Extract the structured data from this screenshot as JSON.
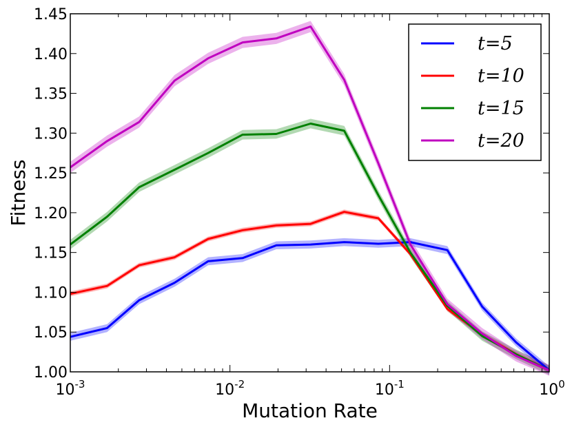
{
  "chart_data": {
    "type": "line",
    "xlabel": "Mutation Rate",
    "ylabel": "Fitness",
    "xscale": "log",
    "xlim": [
      0.001,
      1
    ],
    "ylim": [
      1.0,
      1.45
    ],
    "grid": false,
    "legend_position": "top-right",
    "x_tick_labels": [
      "10^-3",
      "10^-2",
      "10^-1",
      "10^0"
    ],
    "y_ticks": [
      "1.00",
      "1.05",
      "1.10",
      "1.15",
      "1.20",
      "1.25",
      "1.30",
      "1.35",
      "1.40",
      "1.45"
    ],
    "series": [
      {
        "name": "t=5",
        "color": "#0000ff",
        "x": [
          0.001,
          0.0017,
          0.0027,
          0.0045,
          0.0073,
          0.012,
          0.0195,
          0.032,
          0.052,
          0.085,
          0.135,
          0.23,
          0.38,
          0.62,
          1.0
        ],
        "y": [
          1.044,
          1.055,
          1.09,
          1.112,
          1.139,
          1.143,
          1.159,
          1.16,
          1.163,
          1.161,
          1.163,
          1.153,
          1.082,
          1.037,
          1.002
        ],
        "band": 0.005
      },
      {
        "name": "t=10",
        "color": "#ff0000",
        "x": [
          0.001,
          0.0017,
          0.0027,
          0.0045,
          0.0073,
          0.012,
          0.0195,
          0.032,
          0.052,
          0.085,
          0.135,
          0.23,
          0.38,
          0.62,
          1.0
        ],
        "y": [
          1.098,
          1.108,
          1.134,
          1.144,
          1.167,
          1.178,
          1.184,
          1.186,
          1.201,
          1.193,
          1.148,
          1.079,
          1.047,
          1.022,
          1.002
        ],
        "band": 0.003
      },
      {
        "name": "t=15",
        "color": "#008000",
        "x": [
          0.001,
          0.0017,
          0.0027,
          0.0045,
          0.0073,
          0.012,
          0.0195,
          0.032,
          0.052,
          0.085,
          0.135,
          0.23,
          0.38,
          0.62,
          1.0
        ],
        "y": [
          1.16,
          1.195,
          1.232,
          1.254,
          1.275,
          1.298,
          1.299,
          1.312,
          1.303,
          1.222,
          1.15,
          1.083,
          1.045,
          1.022,
          1.002
        ],
        "band": 0.006
      },
      {
        "name": "t=20",
        "color": "#bf00bf",
        "x": [
          0.001,
          0.0017,
          0.0027,
          0.0045,
          0.0073,
          0.012,
          0.0195,
          0.032,
          0.052,
          0.085,
          0.135,
          0.23,
          0.38,
          0.62,
          1.0
        ],
        "y": [
          1.257,
          1.29,
          1.314,
          1.366,
          1.394,
          1.414,
          1.419,
          1.434,
          1.367,
          1.262,
          1.16,
          1.085,
          1.048,
          1.02,
          1.002
        ],
        "band": 0.007
      }
    ]
  }
}
